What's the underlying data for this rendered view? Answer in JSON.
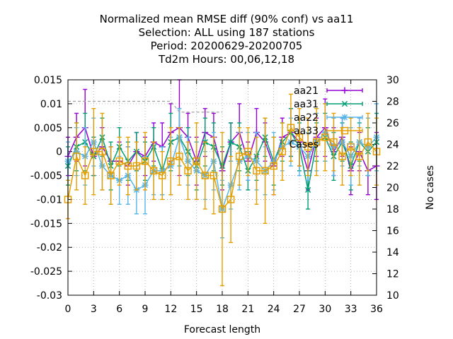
{
  "chart_data": {
    "type": "line",
    "title_lines": [
      "Normalized mean RMSE diff (90% conf) vs aa11",
      "Selection: ALL using   187 stations",
      "Period: 20200629-20200705",
      "Td2m   Hours:  00,06,12,18"
    ],
    "xlabel": "Forecast length",
    "ylabel": "",
    "y2label": "No cases",
    "xlim": [
      0,
      36
    ],
    "ylim": [
      -0.03,
      0.015
    ],
    "y2lim": [
      10,
      30
    ],
    "xticks": [
      "0",
      "3",
      "6",
      "9",
      "12",
      "15",
      "18",
      "21",
      "24",
      "27",
      "30",
      "33",
      "36"
    ],
    "yticks": [
      "0.015",
      "0.01",
      "0.005",
      "0",
      "-0.005",
      "-0.01",
      "-0.015",
      "-0.02",
      "-0.025",
      "-0.03"
    ],
    "y2ticks": [
      "30",
      "28",
      "26",
      "24",
      "22",
      "20",
      "18",
      "16",
      "14",
      "12",
      "10"
    ],
    "grid": true,
    "legend_position": "top-right",
    "x": [
      0,
      1,
      2,
      3,
      4,
      5,
      6,
      7,
      8,
      9,
      10,
      11,
      12,
      13,
      14,
      15,
      16,
      17,
      18,
      19,
      20,
      21,
      22,
      23,
      24,
      25,
      26,
      27,
      28,
      29,
      30,
      31,
      32,
      33,
      34,
      35,
      36
    ],
    "series": [
      {
        "name": "aa21",
        "color": "#9400d3",
        "marker": "plus",
        "values": [
          -0.001,
          0.003,
          0.005,
          -0.001,
          0.001,
          -0.002,
          -0.002,
          -0.003,
          0.0,
          -0.001,
          0.002,
          0.001,
          0.004,
          0.005,
          0.003,
          -0.002,
          0.004,
          0.003,
          -0.004,
          0.002,
          0.004,
          -0.002,
          0.004,
          0.002,
          -0.003,
          0.003,
          0.004,
          0.002,
          -0.004,
          0.003,
          0.005,
          0.0,
          0.003,
          -0.004,
          0.0,
          -0.004,
          -0.003
        ],
        "err": [
          0.004,
          0.005,
          0.008,
          0.004,
          0.004,
          0.003,
          0.004,
          0.004,
          0.004,
          0.004,
          0.004,
          0.005,
          0.006,
          0.01,
          0.005,
          0.005,
          0.005,
          0.005,
          0.004,
          0.004,
          0.006,
          0.004,
          0.005,
          0.004,
          0.006,
          0.004,
          0.005,
          0.005,
          0.004,
          0.004,
          0.006,
          0.005,
          0.004,
          0.005,
          0.004,
          0.005,
          0.007
        ]
      },
      {
        "name": "aa31",
        "color": "#009e73",
        "marker": "x",
        "values": [
          -0.003,
          0.001,
          0.002,
          -0.001,
          0.003,
          -0.003,
          0.001,
          -0.002,
          0.0,
          -0.002,
          0.001,
          -0.004,
          0.002,
          0.003,
          0.0,
          -0.003,
          0.002,
          0.001,
          -0.003,
          0.002,
          0.001,
          -0.004,
          -0.001,
          0.003,
          -0.002,
          0.002,
          0.004,
          0.001,
          -0.008,
          0.002,
          0.003,
          -0.001,
          0.002,
          -0.003,
          0.002,
          0.0,
          0.002
        ],
        "err": [
          0.004,
          0.005,
          0.006,
          0.004,
          0.004,
          0.005,
          0.004,
          0.004,
          0.004,
          0.004,
          0.004,
          0.005,
          0.006,
          0.006,
          0.005,
          0.005,
          0.005,
          0.005,
          0.004,
          0.004,
          0.005,
          0.004,
          0.005,
          0.004,
          0.005,
          0.004,
          0.005,
          0.005,
          0.004,
          0.004,
          0.005,
          0.005,
          0.004,
          0.005,
          0.004,
          0.005,
          0.006
        ]
      },
      {
        "name": "aa22",
        "color": "#56b4e9",
        "marker": "star",
        "values": [
          -0.002,
          0.0,
          -0.001,
          0.002,
          -0.003,
          -0.005,
          -0.006,
          -0.005,
          -0.008,
          -0.007,
          -0.004,
          -0.004,
          -0.003,
          0.003,
          -0.002,
          -0.004,
          -0.005,
          -0.002,
          -0.012,
          -0.007,
          -0.002,
          -0.001,
          -0.002,
          -0.004,
          -0.002,
          0.001,
          0.002,
          0.001,
          -0.001,
          0.002,
          0.004,
          0.001,
          0.002,
          -0.001,
          0.002,
          0.001,
          0.003
        ],
        "err": [
          0.004,
          0.005,
          0.006,
          0.005,
          0.005,
          0.006,
          0.005,
          0.006,
          0.005,
          0.006,
          0.005,
          0.005,
          0.006,
          0.006,
          0.005,
          0.006,
          0.005,
          0.006,
          0.006,
          0.005,
          0.006,
          0.005,
          0.006,
          0.005,
          0.006,
          0.005,
          0.005,
          0.006,
          0.005,
          0.006,
          0.006,
          0.006,
          0.005,
          0.006,
          0.005,
          0.006,
          0.007
        ]
      },
      {
        "name": "aa33",
        "color": "#e69f00",
        "marker": "square",
        "values": [
          -0.01,
          -0.001,
          -0.005,
          0.0,
          0.0,
          -0.005,
          -0.002,
          -0.003,
          -0.003,
          -0.002,
          -0.004,
          -0.005,
          -0.002,
          -0.001,
          -0.004,
          -0.002,
          -0.005,
          -0.005,
          -0.012,
          -0.01,
          -0.001,
          0.0,
          -0.004,
          -0.004,
          -0.003,
          0.0,
          0.005,
          0.003,
          0.001,
          0.002,
          0.003,
          0.002,
          -0.001,
          0.001,
          -0.001,
          0.002,
          0.0
        ],
        "err": [
          0.004,
          0.007,
          0.006,
          0.009,
          0.008,
          0.006,
          0.005,
          0.006,
          0.005,
          0.006,
          0.006,
          0.005,
          0.007,
          0.006,
          0.006,
          0.008,
          0.007,
          0.008,
          0.016,
          0.009,
          0.006,
          0.005,
          0.007,
          0.011,
          0.006,
          0.006,
          0.007,
          0.006,
          0.006,
          0.007,
          0.007,
          0.006,
          0.006,
          0.006,
          0.006,
          0.006,
          0.007
        ]
      },
      {
        "name": "Cases",
        "color": "#a0a0a0",
        "dashed": true,
        "axis": "y2",
        "x": [
          0,
          1,
          2,
          3,
          4,
          5,
          6,
          7,
          8,
          9,
          10,
          11,
          12,
          13,
          14,
          15,
          16,
          17,
          18
        ],
        "values": [
          28,
          28,
          28,
          28,
          28,
          28,
          28,
          28,
          28,
          28,
          28,
          28,
          28,
          27,
          27,
          27,
          27,
          27,
          27
        ]
      }
    ]
  }
}
